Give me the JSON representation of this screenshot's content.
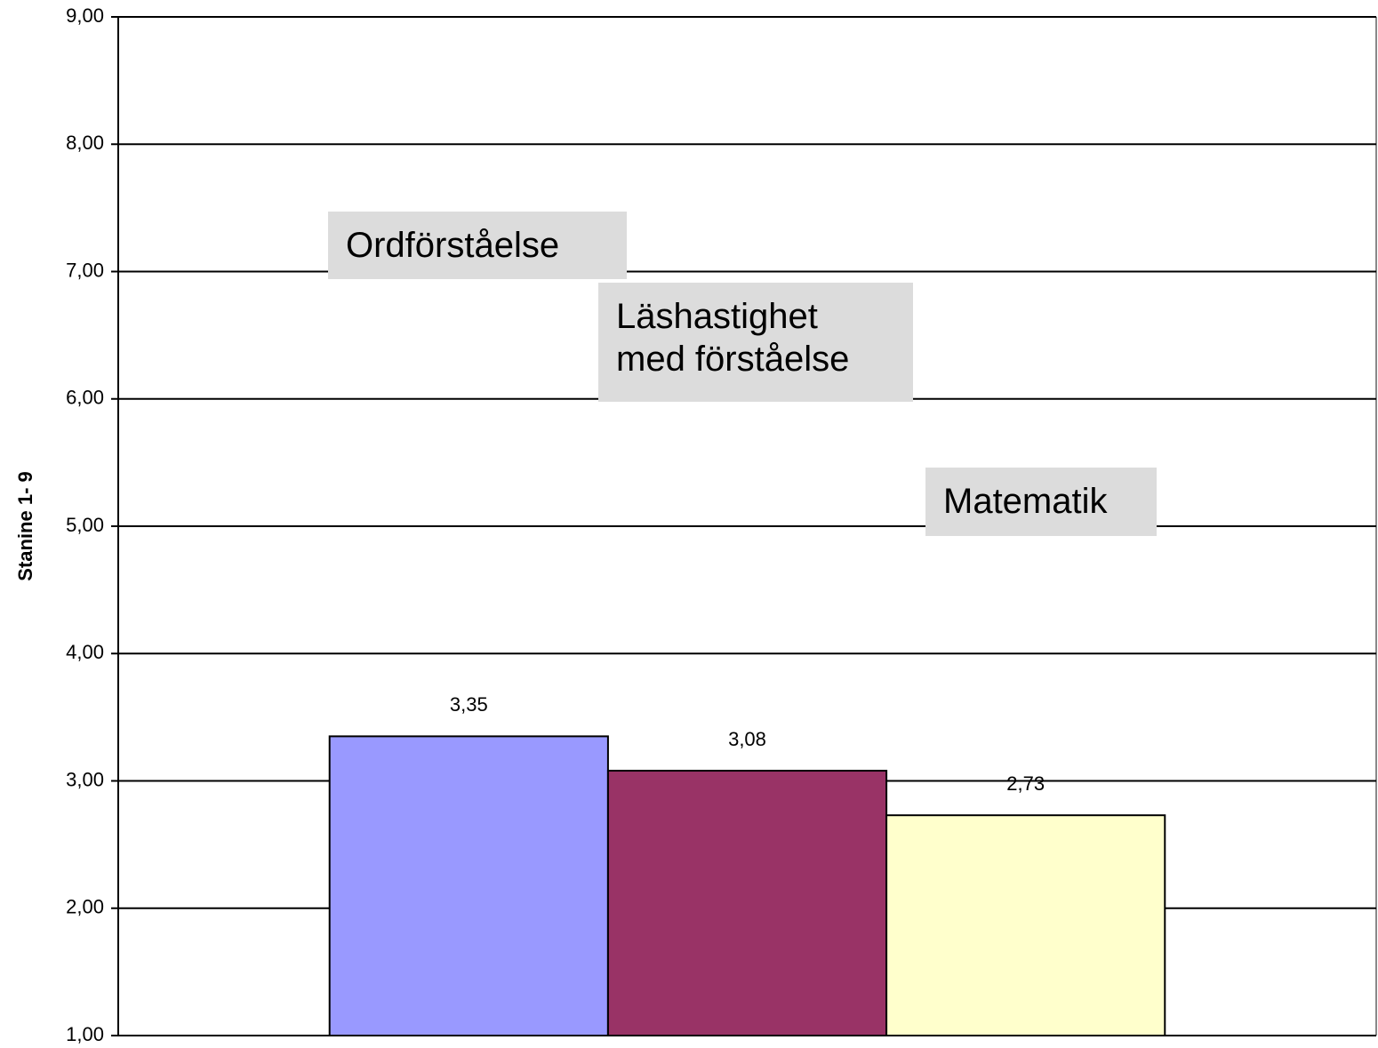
{
  "chart_data": {
    "type": "bar",
    "y_label": "Stanine 1- 9",
    "categories": [
      null
    ],
    "series": [
      {
        "name": "Ordförståelse",
        "color": "#9999ff",
        "values": [
          3.35
        ],
        "value_labels": [
          "3,35"
        ]
      },
      {
        "name": "Läshastighet med förståelse",
        "color": "#993366",
        "values": [
          3.08
        ],
        "value_labels": [
          "3,08"
        ]
      },
      {
        "name": "Matematik",
        "color": "#ffffcc",
        "values": [
          2.73
        ],
        "value_labels": [
          "2,73"
        ]
      }
    ],
    "ylim": [
      1,
      9
    ],
    "yticks": [
      {
        "value": 1,
        "label": "1,00"
      },
      {
        "value": 2,
        "label": "2,00"
      },
      {
        "value": 3,
        "label": "3,00"
      },
      {
        "value": 4,
        "label": "4,00"
      },
      {
        "value": 5,
        "label": "5,00"
      },
      {
        "value": 6,
        "label": "6,00"
      },
      {
        "value": 7,
        "label": "7,00"
      },
      {
        "value": 8,
        "label": "8,00"
      },
      {
        "value": 9,
        "label": "9,00"
      }
    ],
    "grid": true
  }
}
